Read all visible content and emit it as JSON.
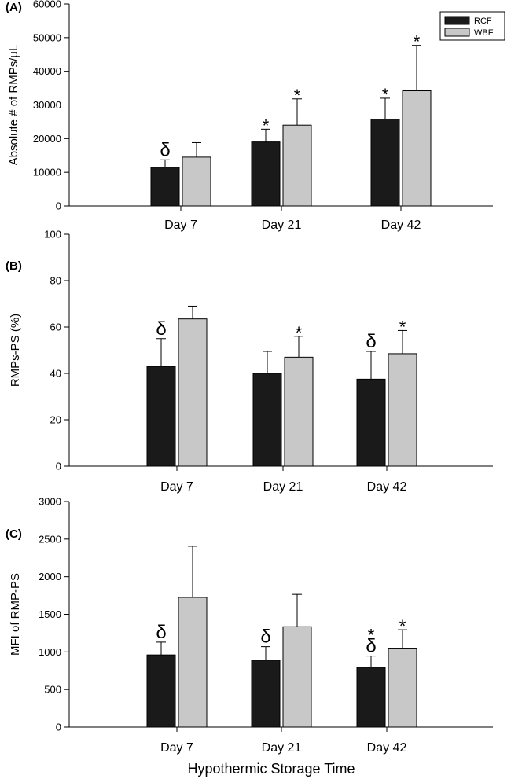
{
  "figure_x_title": "Hypothermic Storage Time",
  "colors": {
    "RCF": "#1a1a1a",
    "WBF": "#c8c8c8",
    "axis": "#000000"
  },
  "chart_data": [
    {
      "panel": "(A)",
      "type": "bar",
      "ylabel": "Absolute # of RMPs/µL",
      "xlabel": "",
      "ylim": [
        0,
        60000
      ],
      "yticks": [
        0,
        10000,
        20000,
        30000,
        40000,
        50000,
        60000
      ],
      "categories": [
        "Day 7",
        "Day 21",
        "Day 42"
      ],
      "legend": {
        "position": "top-right",
        "entries": [
          "RCF",
          "WBF"
        ]
      },
      "series": [
        {
          "name": "RCF",
          "values": [
            11500,
            19000,
            25800
          ],
          "errors": [
            2200,
            3800,
            6200
          ],
          "markers": [
            "δ",
            "*",
            "*"
          ]
        },
        {
          "name": "WBF",
          "values": [
            14500,
            24000,
            34200
          ],
          "errors": [
            4300,
            7800,
            13500
          ],
          "markers": [
            "",
            "*",
            "*"
          ]
        }
      ]
    },
    {
      "panel": "(B)",
      "type": "bar",
      "ylabel": "RMPs-PS (%)",
      "xlabel": "",
      "ylim": [
        0,
        100
      ],
      "yticks": [
        0,
        20,
        40,
        60,
        80,
        100
      ],
      "categories": [
        "Day 7",
        "Day 21",
        "Day 42"
      ],
      "series": [
        {
          "name": "RCF",
          "values": [
            43,
            40,
            37.5
          ],
          "errors": [
            12,
            9.5,
            12
          ],
          "markers": [
            "δ",
            "",
            "δ"
          ]
        },
        {
          "name": "WBF",
          "values": [
            63.5,
            47,
            48.5
          ],
          "errors": [
            5.5,
            9,
            10
          ],
          "markers": [
            "",
            "*",
            "*"
          ]
        }
      ]
    },
    {
      "panel": "(C)",
      "type": "bar",
      "ylabel": "MFI of RMP-PS",
      "xlabel": "Hypothermic Storage Time",
      "ylim": [
        0,
        3000
      ],
      "yticks": [
        0,
        500,
        1000,
        1500,
        2000,
        2500,
        3000
      ],
      "categories": [
        "Day 7",
        "Day 21",
        "Day 42"
      ],
      "series": [
        {
          "name": "RCF",
          "values": [
            960,
            890,
            795
          ],
          "errors": [
            170,
            180,
            150
          ],
          "markers": [
            "δ",
            "δ",
            "*δ"
          ]
        },
        {
          "name": "WBF",
          "values": [
            1725,
            1335,
            1050
          ],
          "errors": [
            680,
            430,
            245
          ],
          "markers": [
            "",
            "",
            "*"
          ]
        }
      ]
    }
  ]
}
